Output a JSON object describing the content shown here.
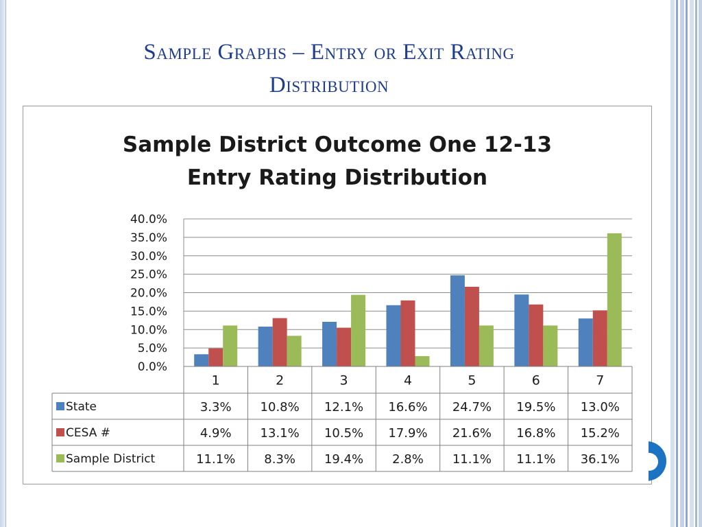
{
  "slide": {
    "title_line1": "Sample Graphs – Entry or Exit Rating",
    "title_line2": "Distribution",
    "accent_color": "#1f3d8a"
  },
  "chart_data": {
    "type": "bar",
    "title_line1": "Sample District Outcome One 12-13",
    "title_line2": "Entry Rating Distribution",
    "categories": [
      "1",
      "2",
      "3",
      "4",
      "5",
      "6",
      "7"
    ],
    "series": [
      {
        "name": "State",
        "color": "#4f81bd",
        "values": [
          3.3,
          10.8,
          12.1,
          16.6,
          24.7,
          19.5,
          13.0
        ],
        "labels": [
          "3.3%",
          "10.8%",
          "12.1%",
          "16.6%",
          "24.7%",
          "19.5%",
          "13.0%"
        ]
      },
      {
        "name": "CESA #",
        "color": "#c0504d",
        "values": [
          4.9,
          13.1,
          10.5,
          17.9,
          21.6,
          16.8,
          15.2
        ],
        "labels": [
          "4.9%",
          "13.1%",
          "10.5%",
          "17.9%",
          "21.6%",
          "16.8%",
          "15.2%"
        ]
      },
      {
        "name": "Sample District",
        "color": "#9bbb59",
        "values": [
          11.1,
          8.3,
          19.4,
          2.8,
          11.1,
          11.1,
          36.1
        ],
        "labels": [
          "11.1%",
          "8.3%",
          "19.4%",
          "2.8%",
          "11.1%",
          "11.1%",
          "36.1%"
        ]
      }
    ],
    "ylim": [
      0,
      40
    ],
    "yticks": [
      0,
      5,
      10,
      15,
      20,
      25,
      30,
      35,
      40
    ],
    "ytick_labels": [
      "0.0%",
      "5.0%",
      "10.0%",
      "15.0%",
      "20.0%",
      "25.0%",
      "30.0%",
      "35.0%",
      "40.0%"
    ],
    "grid": true,
    "legend": "data-table"
  }
}
